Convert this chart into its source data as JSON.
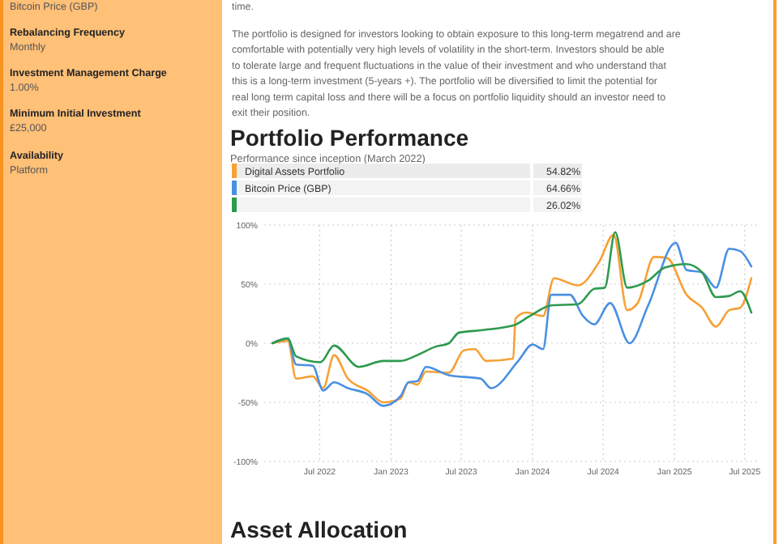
{
  "chart_data": {
    "type": "line",
    "title": "Portfolio Performance",
    "subtitle": "Performance since inception (March 2022)",
    "xlim": [
      "2022-02-08",
      "2025-08-06"
    ],
    "ylim": [
      -100,
      100
    ],
    "xticks": [
      {
        "value": "2022-07-01",
        "label": "Jul 2022"
      },
      {
        "value": "2023-01-01",
        "label": "Jan 2023"
      },
      {
        "value": "2023-07-01",
        "label": "Jul 2023"
      },
      {
        "value": "2024-01-01",
        "label": "Jan 2024"
      },
      {
        "value": "2024-07-01",
        "label": "Jul 2024"
      },
      {
        "value": "2025-01-01",
        "label": "Jan 2025"
      },
      {
        "value": "2025-07-01",
        "label": "Jul 2025"
      }
    ],
    "yticks": [
      {
        "value": -100,
        "label": "-100%"
      },
      {
        "value": -50,
        "label": "-50%"
      },
      {
        "value": 0,
        "label": "0%"
      },
      {
        "value": 50,
        "label": "50%"
      },
      {
        "value": 100,
        "label": "100%"
      }
    ],
    "grid": true,
    "legend": "top",
    "line_style": "solid",
    "series": [
      {
        "name": "Digital Assets Portfolio",
        "color": "#f7a035",
        "x": [
          "2022-03-01",
          "2022-04-10",
          "2022-05-01",
          "2022-06-13",
          "2022-07-10",
          "2022-08-07",
          "2022-09-12",
          "2022-11-01",
          "2022-12-12",
          "2023-01-25",
          "2023-02-15",
          "2023-03-10",
          "2023-04-01",
          "2023-05-30",
          "2023-07-08",
          "2023-08-05",
          "2023-09-03",
          "2023-11-12",
          "2023-11-18",
          "2023-12-16",
          "2024-01-28",
          "2024-02-25",
          "2024-04-27",
          "2024-06-21",
          "2024-07-28",
          "2024-09-01",
          "2024-09-28",
          "2024-11-09",
          "2024-12-13",
          "2025-02-01",
          "2025-03-13",
          "2025-04-18",
          "2025-05-22",
          "2025-06-19",
          "2025-07-18"
        ],
        "values": [
          0,
          2,
          -30,
          -28,
          -38,
          -10,
          -30,
          -40,
          -50,
          -47,
          -33,
          -35,
          -24,
          -25,
          -6,
          -5,
          -15,
          -13,
          21,
          26,
          23,
          55,
          49,
          69,
          92,
          28,
          34,
          73,
          72,
          41,
          30,
          14,
          28,
          30,
          55
        ]
      },
      {
        "name": "Bitcoin Price (GBP)",
        "color": "#4a90e2",
        "x": [
          "2022-03-01",
          "2022-04-10",
          "2022-05-01",
          "2022-06-13",
          "2022-07-10",
          "2022-08-07",
          "2022-09-12",
          "2022-11-01",
          "2022-12-12",
          "2023-01-25",
          "2023-02-15",
          "2023-03-10",
          "2023-04-01",
          "2023-05-30",
          "2023-08-20",
          "2023-09-16",
          "2023-11-25",
          "2024-01-01",
          "2024-01-28",
          "2024-02-18",
          "2024-04-06",
          "2024-05-10",
          "2024-06-08",
          "2024-07-19",
          "2024-09-07",
          "2024-10-25",
          "2025-01-04",
          "2025-02-01",
          "2025-03-13",
          "2025-04-18",
          "2025-05-22",
          "2025-06-19",
          "2025-07-18"
        ],
        "values": [
          0,
          4,
          -18,
          -19,
          -40,
          -33,
          -38,
          -43,
          -53,
          -45,
          -33,
          -32,
          -20,
          -27,
          -30,
          -38,
          -15,
          -1,
          -5,
          41,
          41,
          23,
          16,
          34,
          0,
          32,
          85,
          62,
          60,
          47,
          80,
          78,
          65
        ]
      },
      {
        "color": "#2e9a4e",
        "x": [
          "2022-03-01",
          "2022-04-10",
          "2022-05-01",
          "2022-07-03",
          "2022-08-07",
          "2022-10-10",
          "2022-12-12",
          "2023-01-25",
          "2023-03-10",
          "2023-04-25",
          "2023-05-30",
          "2023-06-25",
          "2023-08-20",
          "2023-11-12",
          "2023-12-25",
          "2024-02-18",
          "2024-04-27",
          "2024-06-08",
          "2024-07-05",
          "2024-08-01",
          "2024-09-01",
          "2024-10-25",
          "2024-12-07",
          "2025-02-01",
          "2025-03-13",
          "2025-04-18",
          "2025-05-22",
          "2025-06-19",
          "2025-07-18"
        ],
        "values": [
          0,
          4,
          -11,
          -16,
          -2,
          -20,
          -15,
          -15,
          -10,
          -3,
          0,
          9,
          11,
          15,
          23,
          32,
          33,
          46,
          47,
          94,
          47,
          53,
          64,
          67,
          60,
          39,
          40,
          44,
          26
        ]
      }
    ],
    "annotations": [
      "54.82%",
      "64.66%",
      "26.02%",
      "time.",
      "The portfolio is designed for investors looking to obtain exposure to this long-term megatrend and are comfortable with potentially very high levels of volatility in the short-term. Investors should be able to tolerate large and frequent fluctuations in the value of their investment and who understand that this is a long-term investment (5-years +). The portfolio will be diversified to limit the potential for real long term capital loss and there will be a focus on portfolio liquidity should an investor need to exit their position.",
      "Bitcoin Price (GBP)",
      "Rebalancing Frequency",
      "Monthly",
      "Investment Management Charge",
      "1.00%",
      "Minimum Initial Investment",
      "£25,000",
      "Availability",
      "Platform",
      "Asset Allocation"
    ]
  }
}
